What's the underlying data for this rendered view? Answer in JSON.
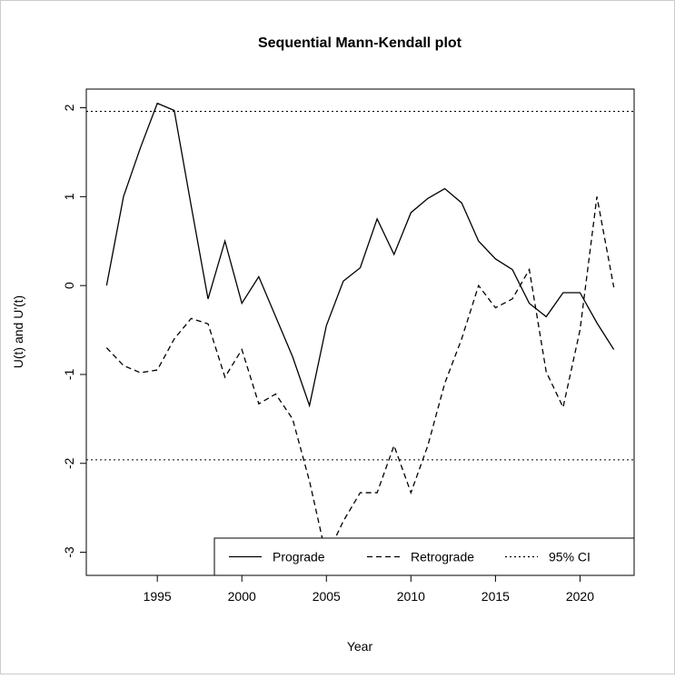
{
  "chart_data": {
    "type": "line",
    "title": "Sequential Mann-Kendall plot",
    "x_label": "Year",
    "y_label": "U(t) and U'(t)",
    "x": [
      1992,
      1993,
      1994,
      1995,
      1996,
      1997,
      1998,
      1999,
      2000,
      2001,
      2002,
      2003,
      2004,
      2005,
      2006,
      2007,
      2008,
      2009,
      2010,
      2011,
      2012,
      2013,
      2014,
      2015,
      2016,
      2017,
      2018,
      2019,
      2020,
      2021,
      2022
    ],
    "series": [
      {
        "name": "Prograde",
        "color": "#000000",
        "line_style": "solid",
        "values": [
          0,
          1.0,
          1.55,
          2.05,
          1.97,
          0.9,
          -0.15,
          0.5,
          -0.2,
          0.1,
          -0.35,
          -0.8,
          -1.35,
          -0.45,
          0.05,
          0.2,
          0.75,
          0.35,
          0.82,
          0.98,
          1.09,
          0.93,
          0.5,
          0.3,
          0.18,
          -0.2,
          -0.35,
          -0.08,
          -0.08,
          -0.42,
          -0.72
        ]
      },
      {
        "name": "Retrograde",
        "color": "#000000",
        "line_style": "dashed",
        "values": [
          -0.7,
          -0.9,
          -0.98,
          -0.95,
          -0.6,
          -0.37,
          -0.43,
          -1.03,
          -0.72,
          -1.33,
          -1.22,
          -1.5,
          -2.2,
          -3.05,
          -2.65,
          -2.33,
          -2.33,
          -1.8,
          -2.33,
          -1.8,
          -1.1,
          -0.6,
          0.0,
          -0.25,
          -0.15,
          0.18,
          -0.97,
          -1.37,
          -0.5,
          1.0,
          -0.02
        ]
      }
    ],
    "reference_lines": {
      "name": "95% CI",
      "color": "#000000",
      "line_style": "dotted",
      "values": [
        1.96,
        -1.96
      ]
    },
    "xlim": [
      1990.8,
      2023.2
    ],
    "ylim": [
      -3.26,
      2.21
    ],
    "xticks": [
      1995,
      2000,
      2005,
      2010,
      2015,
      2020
    ],
    "yticks": [
      -3,
      -2,
      -1,
      0,
      1,
      2
    ],
    "legend": "bottom-right",
    "grid": false
  }
}
